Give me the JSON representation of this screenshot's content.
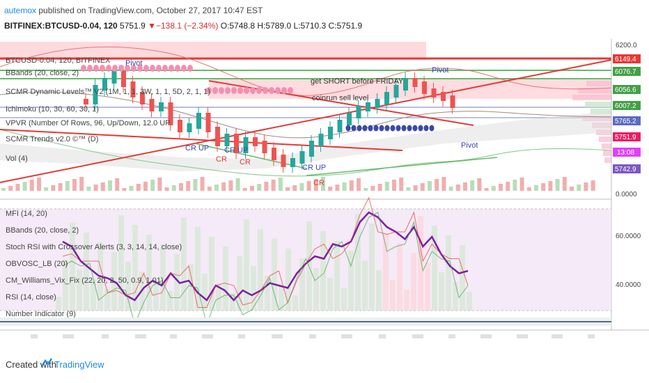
{
  "header": {
    "publisher": "autemox",
    "published_text": "published on TradingView.com, October 27, 2017 10:47 EST",
    "symbol": "BITFINEX:BTCUSD-0.04, 120",
    "last": "5751.9",
    "change": "▼−138.1 (−2.34%)",
    "ohlc": "O:5748.8 H:5789.0 L:5710.3 C:5751.9"
  },
  "main_legend": [
    "BTCUSD-0.04, 120, BITFINEX",
    "BBands (20, close, 2)",
    "SCMR Dynamic Levels™ V2 (1M, 1, 1, 3W, 1, 1, 5D, 2, 1, 1)",
    "Ichimoku (10, 30, 60, 30, 1)",
    "VPVR (Number Of Rows, 96, Up/Down, 12.0 UP",
    "SCMR Trends v2.0 ©™ (D)",
    "Vol (4)"
  ],
  "lower_legend": [
    "MFI (14, 20)",
    "BBands (20, close, 2)",
    "Stoch RSI with Crossover Alerts (3, 3, 14, 14, close)",
    "OBVOSC_LB (20)",
    "CM_Williams_Vix_Fix (22, 20, 2, 50, 0.9, 1.01)",
    "RSI (14, close)",
    "Number Indicator (9)"
  ],
  "annotations": {
    "pivot_top_left": "Pivot",
    "pivot_top_right": "Pivot",
    "pivot_bottom_right": "Pivot",
    "cr_up_1": "CR UP",
    "cr_up_2": "CR UP",
    "cr_up_3": "CR UP",
    "cr_1": "CR",
    "cr_2": "CR",
    "cr_3": "CR",
    "short_note": "get SHORT before FRIDAY",
    "sell_note": "coinrun sell level"
  },
  "price_scale": {
    "top_partial": "6200.0",
    "zero": "0.0000",
    "lower_60": "60.0000",
    "lower_40": "40.0000"
  },
  "price_tags": [
    {
      "label": "6149.4",
      "color": "#e53935"
    },
    {
      "label": "6076.7",
      "color": "#43a047"
    },
    {
      "label": "6056.6",
      "color": "#43a047"
    },
    {
      "label": "6007.2",
      "color": "#43a047"
    },
    {
      "label": "5765.2",
      "color": "#5c6bc0"
    },
    {
      "label": "5751.9",
      "color": "#e91e63"
    },
    {
      "label": "13:08",
      "color": "#e040fb"
    },
    {
      "label": "5742.9",
      "color": "#7e57c2"
    }
  ],
  "colors": {
    "up": "#26a69a",
    "down": "#ef5350",
    "rsi": "#7b1fa2",
    "band_fill": "#f3e5f5"
  },
  "footer": {
    "created_with": "Created with",
    "brand": "TradingView"
  },
  "chart_data": {
    "type": "line",
    "title": "BITFINEX:BTCUSD-0.04, 120",
    "rsi_series": {
      "name": "RSI (14, close)",
      "values": [
        58,
        56,
        50,
        47,
        44,
        43,
        41,
        36,
        34,
        39,
        42,
        40,
        45,
        41,
        42,
        37,
        34,
        40,
        38,
        34,
        38,
        36,
        38,
        41,
        40,
        39,
        45,
        49,
        52,
        51,
        57,
        56,
        58,
        66,
        70,
        68,
        64,
        62,
        59,
        64,
        56,
        60,
        53,
        48,
        45,
        46
      ]
    },
    "lower_axis": {
      "ticks": [
        60,
        40
      ]
    }
  }
}
